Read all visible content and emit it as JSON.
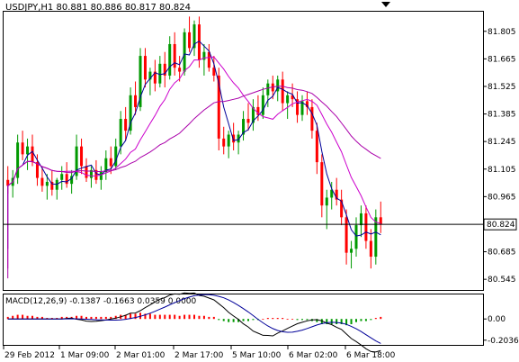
{
  "header": {
    "symbol_line": "USDJPY,H1  80.881 80.886 80.817 80.824"
  },
  "macd_header": "MACD(12,26,9) -0.1387 -0.1663 0.0359 0.0000",
  "current_price_label": "80.824",
  "colors": {
    "bull": "#009900",
    "bear": "#ff0000",
    "ma_fast": "#000099",
    "ma_slow": "#cc00cc",
    "ma_long": "#aa00aa",
    "price_box": "#ffffff",
    "frame": "#000000"
  },
  "chart_data": [
    {
      "type": "candlestick",
      "title": "USDJPY,H1",
      "ylim": [
        80.5,
        81.9
      ],
      "yticks": [
        "81.805",
        "81.665",
        "81.525",
        "81.385",
        "81.245",
        "81.105",
        "80.965",
        "80.685",
        "80.545"
      ],
      "yticks_values": [
        81.805,
        81.665,
        81.525,
        81.385,
        81.245,
        81.105,
        80.965,
        80.685,
        80.545
      ],
      "current_price": 80.824,
      "x_labels": [
        "29 Feb 2012",
        "1 Mar 09:00",
        "2 Mar 01:00",
        "2 Mar 17:00",
        "5 Mar 10:00",
        "6 Mar 02:00",
        "6 Mar 18:00"
      ],
      "series": [
        {
          "name": "",
          "ohlc": [
            [
              81.05,
              81.12,
              80.98,
              81.02
            ],
            [
              81.02,
              81.1,
              80.96,
              81.06
            ],
            [
              81.06,
              81.28,
              81.03,
              81.24
            ],
            [
              81.24,
              81.3,
              81.15,
              81.18
            ],
            [
              81.18,
              81.26,
              81.1,
              81.22
            ],
            [
              81.22,
              81.28,
              81.12,
              81.14
            ],
            [
              81.14,
              81.18,
              81.02,
              81.06
            ],
            [
              81.06,
              81.12,
              80.99,
              81.02
            ],
            [
              81.02,
              81.08,
              80.95,
              81.04
            ],
            [
              81.04,
              81.1,
              80.97,
              81.0
            ],
            [
              81.0,
              81.06,
              80.95,
              81.05
            ],
            [
              81.05,
              81.12,
              81.0,
              81.08
            ],
            [
              81.08,
              81.14,
              81.01,
              81.03
            ],
            [
              81.03,
              81.1,
              80.98,
              81.07
            ],
            [
              81.07,
              81.28,
              81.05,
              81.22
            ],
            [
              81.22,
              81.26,
              81.08,
              81.12
            ],
            [
              81.12,
              81.16,
              81.04,
              81.06
            ],
            [
              81.06,
              81.12,
              81.01,
              81.1
            ],
            [
              81.1,
              81.15,
              81.03,
              81.05
            ],
            [
              81.05,
              81.12,
              81.0,
              81.09
            ],
            [
              81.09,
              81.2,
              81.05,
              81.16
            ],
            [
              81.16,
              81.22,
              81.08,
              81.12
            ],
            [
              81.12,
              81.26,
              81.1,
              81.22
            ],
            [
              81.22,
              81.4,
              81.18,
              81.36
            ],
            [
              81.36,
              81.42,
              81.25,
              81.3
            ],
            [
              81.3,
              81.52,
              81.28,
              81.48
            ],
            [
              81.48,
              81.55,
              81.38,
              81.42
            ],
            [
              81.42,
              81.72,
              81.4,
              81.68
            ],
            [
              81.68,
              81.72,
              81.52,
              81.56
            ],
            [
              81.56,
              81.62,
              81.48,
              81.6
            ],
            [
              81.6,
              81.66,
              81.5,
              81.54
            ],
            [
              81.54,
              81.68,
              81.52,
              81.64
            ],
            [
              81.64,
              81.7,
              81.52,
              81.58
            ],
            [
              81.58,
              81.78,
              81.56,
              81.74
            ],
            [
              81.74,
              81.8,
              81.58,
              81.62
            ],
            [
              81.62,
              81.68,
              81.55,
              81.6
            ],
            [
              81.6,
              81.82,
              81.58,
              81.8
            ],
            [
              81.8,
              81.88,
              81.7,
              81.72
            ],
            [
              81.72,
              81.86,
              81.68,
              81.84
            ],
            [
              81.84,
              81.88,
              81.62,
              81.66
            ],
            [
              81.66,
              81.74,
              81.58,
              81.7
            ],
            [
              81.7,
              81.74,
              81.6,
              81.62
            ],
            [
              81.62,
              81.68,
              81.55,
              81.58
            ],
            [
              81.58,
              81.62,
              81.2,
              81.26
            ],
            [
              81.26,
              81.32,
              81.18,
              81.22
            ],
            [
              81.22,
              81.3,
              81.16,
              81.28
            ],
            [
              81.28,
              81.34,
              81.2,
              81.24
            ],
            [
              81.24,
              81.3,
              81.18,
              81.28
            ],
            [
              81.28,
              81.4,
              81.25,
              81.36
            ],
            [
              81.36,
              81.44,
              81.3,
              81.34
            ],
            [
              81.34,
              81.46,
              81.3,
              81.42
            ],
            [
              81.42,
              81.48,
              81.35,
              81.38
            ],
            [
              81.38,
              81.52,
              81.36,
              81.48
            ],
            [
              81.48,
              81.56,
              81.42,
              81.54
            ],
            [
              81.54,
              81.58,
              81.46,
              81.5
            ],
            [
              81.5,
              81.58,
              81.45,
              81.56
            ],
            [
              81.56,
              81.6,
              81.4,
              81.44
            ],
            [
              81.44,
              81.5,
              81.36,
              81.48
            ],
            [
              81.48,
              81.54,
              81.42,
              81.46
            ],
            [
              81.46,
              81.5,
              81.34,
              81.38
            ],
            [
              81.38,
              81.48,
              81.35,
              81.45
            ],
            [
              81.45,
              81.5,
              81.38,
              81.42
            ],
            [
              81.42,
              81.46,
              81.26,
              81.3
            ],
            [
              81.3,
              81.34,
              81.08,
              81.14
            ],
            [
              81.14,
              81.18,
              80.86,
              80.92
            ],
            [
              80.92,
              81.0,
              80.8,
              80.96
            ],
            [
              80.96,
              81.04,
              80.9,
              81.0
            ],
            [
              81.0,
              81.06,
              80.92,
              80.95
            ],
            [
              80.95,
              81.0,
              80.82,
              80.86
            ],
            [
              80.86,
              80.9,
              80.62,
              80.68
            ],
            [
              80.68,
              80.74,
              80.6,
              80.7
            ],
            [
              80.7,
              80.86,
              80.66,
              80.82
            ],
            [
              80.82,
              80.92,
              80.76,
              80.88
            ],
            [
              80.88,
              80.92,
              80.7,
              80.74
            ],
            [
              80.74,
              80.8,
              80.6,
              80.66
            ],
            [
              80.66,
              80.9,
              80.62,
              80.86
            ],
            [
              80.86,
              80.94,
              80.78,
              80.824
            ]
          ]
        },
        {
          "name": "",
          "kind": "ma_fast"
        },
        {
          "name": "",
          "kind": "ma_slow"
        },
        {
          "name": "",
          "kind": "ma_long"
        }
      ]
    },
    {
      "type": "bar",
      "title": "MACD(12,26,9)",
      "ylim": [
        -0.24,
        0.14
      ],
      "yticks": [
        "0.00",
        "-0.2036"
      ],
      "yticks_values": [
        0.0,
        -0.2036
      ],
      "values": [
        0.02,
        0.03,
        0.04,
        0.04,
        0.03,
        0.03,
        0.02,
        0.02,
        0.01,
        0.01,
        0.01,
        0.02,
        0.02,
        0.02,
        0.03,
        0.03,
        0.02,
        0.02,
        0.02,
        0.02,
        0.02,
        0.02,
        0.03,
        0.04,
        0.04,
        0.05,
        0.05,
        0.06,
        0.05,
        0.05,
        0.04,
        0.04,
        0.04,
        0.04,
        0.04,
        0.03,
        0.04,
        0.04,
        0.04,
        0.03,
        0.03,
        0.02,
        0.02,
        -0.01,
        -0.02,
        -0.03,
        -0.03,
        -0.03,
        -0.02,
        -0.02,
        -0.01,
        -0.01,
        0.0,
        0.01,
        0.01,
        0.01,
        0.01,
        0.0,
        0.0,
        -0.01,
        -0.01,
        -0.01,
        -0.02,
        -0.03,
        -0.05,
        -0.05,
        -0.05,
        -0.05,
        -0.05,
        -0.06,
        -0.05,
        -0.03,
        -0.02,
        -0.02,
        -0.01,
        0.01,
        0.02
      ]
    }
  ]
}
